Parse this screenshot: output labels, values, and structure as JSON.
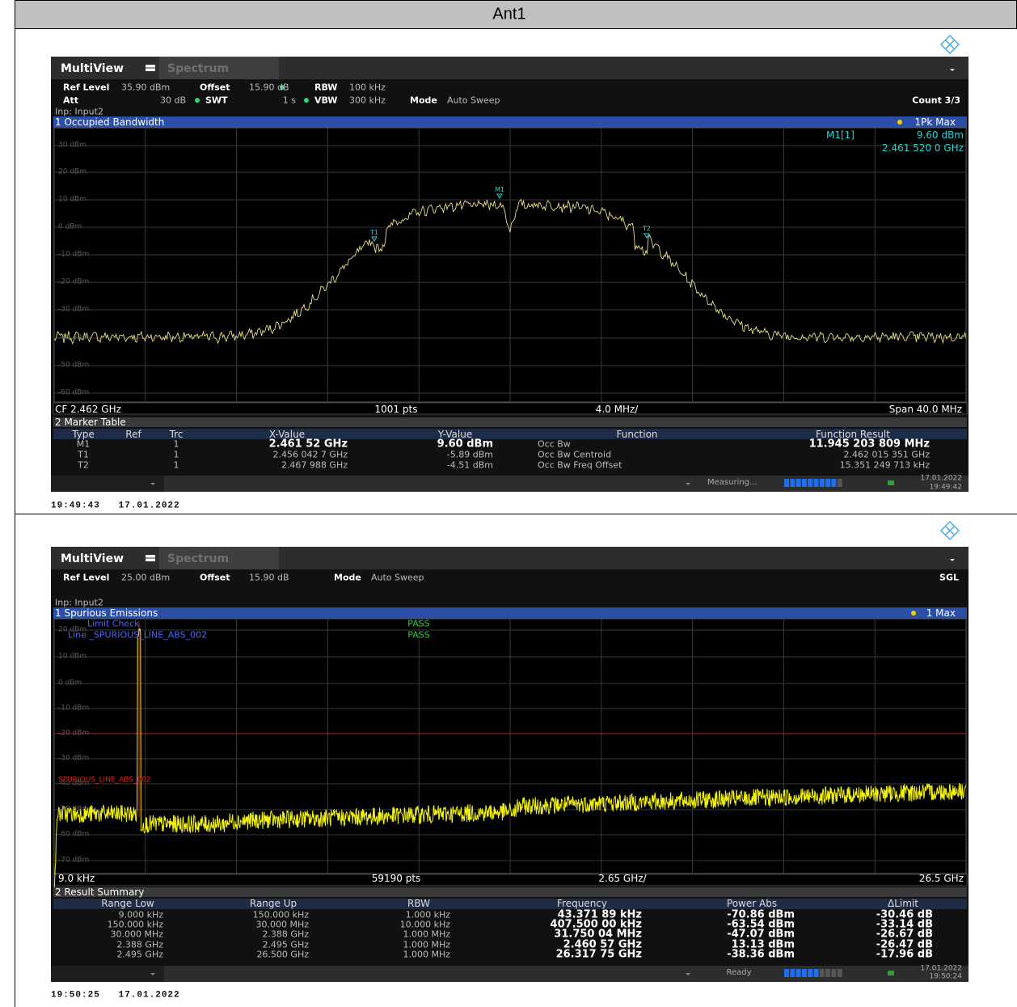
{
  "header": {
    "title": "Ant1"
  },
  "screens": [
    {
      "tabs": [
        "MultiView",
        "Spectrum"
      ],
      "settings": {
        "ref_level_label": "Ref Level",
        "ref_level": "35.90 dBm",
        "offset_label": "Offset",
        "offset": "15.90 dB",
        "rbw_label": "RBW",
        "rbw": "100 kHz",
        "att_label": "Att",
        "att": "30 dB",
        "swt_label": "SWT",
        "swt": "1 s",
        "vbw_label": "VBW",
        "vbw": "300 kHz",
        "mode_label": "Mode",
        "mode": "Auto Sweep",
        "count": "Count 3/3",
        "input": "Inp: Input2"
      },
      "window_title": "1 Occupied Bandwidth",
      "trace_label": "1Pk Max",
      "y_labels": [
        "30 dBm",
        "20 dBm",
        "10 dBm",
        "0 dBm",
        "-10 dBm",
        "-20 dBm",
        "-30 dBm",
        "-40 dBm",
        "-50 dBm",
        "-60 dBm"
      ],
      "marker_info": [
        "M1[1]",
        "9.60 dBm",
        "2.461 520 0 GHz"
      ],
      "markers": [
        "M1",
        "T1",
        "T2"
      ],
      "footer": [
        "CF 2.462 GHz",
        "1001 pts",
        "4.0 MHz/",
        "Span 40.0 MHz"
      ],
      "table_title": "2 Marker Table",
      "table_header": [
        "Type",
        "Ref",
        "Trc",
        "X-Value",
        "Y-Value",
        "Function",
        "Function Result"
      ],
      "table_rows": [
        [
          "M1",
          "1",
          "2.461 52 GHz",
          "9.60 dBm",
          "Occ Bw",
          "11.945 203 809 MHz"
        ],
        [
          "T1",
          "1",
          "2.456 042 7 GHz",
          "-5.89 dBm",
          "Occ Bw Centroid",
          "2.462 015 351 GHz"
        ],
        [
          "T2",
          "1",
          "2.467 988 GHz",
          "-4.51 dBm",
          "Occ Bw Freq Offset",
          "15.351 249 713 kHz"
        ]
      ],
      "status": "Measuring...",
      "date": "17.01.2022",
      "time": "19:49:42",
      "timestamp": "19:49:43   17.01.2022"
    },
    {
      "tabs": [
        "MultiView",
        "Spectrum"
      ],
      "settings": {
        "ref_level_label": "Ref Level",
        "ref_level": "25.00 dBm",
        "offset_label": "Offset",
        "offset": "15.90 dB",
        "mode_label": "Mode",
        "mode": "Auto Sweep",
        "count": "SGL",
        "input": "Inp: Input2"
      },
      "window_title": "1 Spurious Emissions",
      "trace_label": "1 Max",
      "limit_check": [
        {
          "label": "Limit Check",
          "result": "PASS"
        },
        {
          "label": "Line _SPURIOUS_LINE_ABS_002",
          "result": "PASS"
        }
      ],
      "limit_line_label": "SPURIOUS_LINE_ABS_002",
      "y_labels": [
        "20 dBm",
        "10 dBm",
        "0 dBm",
        "-10 dBm",
        "-20 dBm",
        "-30 dBm",
        "-40 dBm",
        "-50 dBm",
        "-60 dBm",
        "-70 dBm"
      ],
      "footer": [
        "9.0 kHz",
        "59190 pts",
        "2.65 GHz/",
        "26.5 GHz"
      ],
      "table_title": "2 Result Summary",
      "table_header": [
        "Range Low",
        "Range Up",
        "RBW",
        "Frequency",
        "Power Abs",
        "ΔLimit"
      ],
      "table_rows": [
        [
          "9.000 kHz",
          "150.000 kHz",
          "1.000 kHz",
          "43.371 89 kHz",
          "-70.86 dBm",
          "-30.46 dB"
        ],
        [
          "150.000 kHz",
          "30.000 MHz",
          "10.000 kHz",
          "407.500 00 kHz",
          "-63.54 dBm",
          "-33.14 dB"
        ],
        [
          "30.000 MHz",
          "2.388 GHz",
          "1.000 MHz",
          "31.750 04 MHz",
          "-47.07 dBm",
          "-26.67 dB"
        ],
        [
          "2.388 GHz",
          "2.495 GHz",
          "1.000 MHz",
          "2.460 57 GHz",
          "13.13 dBm",
          "-26.47 dB"
        ],
        [
          "2.495 GHz",
          "26.500 GHz",
          "1.000 MHz",
          "26.317 75 GHz",
          "-38.36 dBm",
          "-17.96 dB"
        ]
      ],
      "status": "Ready",
      "date": "17.01.2022",
      "time": "19:50:24",
      "timestamp": "19:50:25   17.01.2022"
    }
  ]
}
